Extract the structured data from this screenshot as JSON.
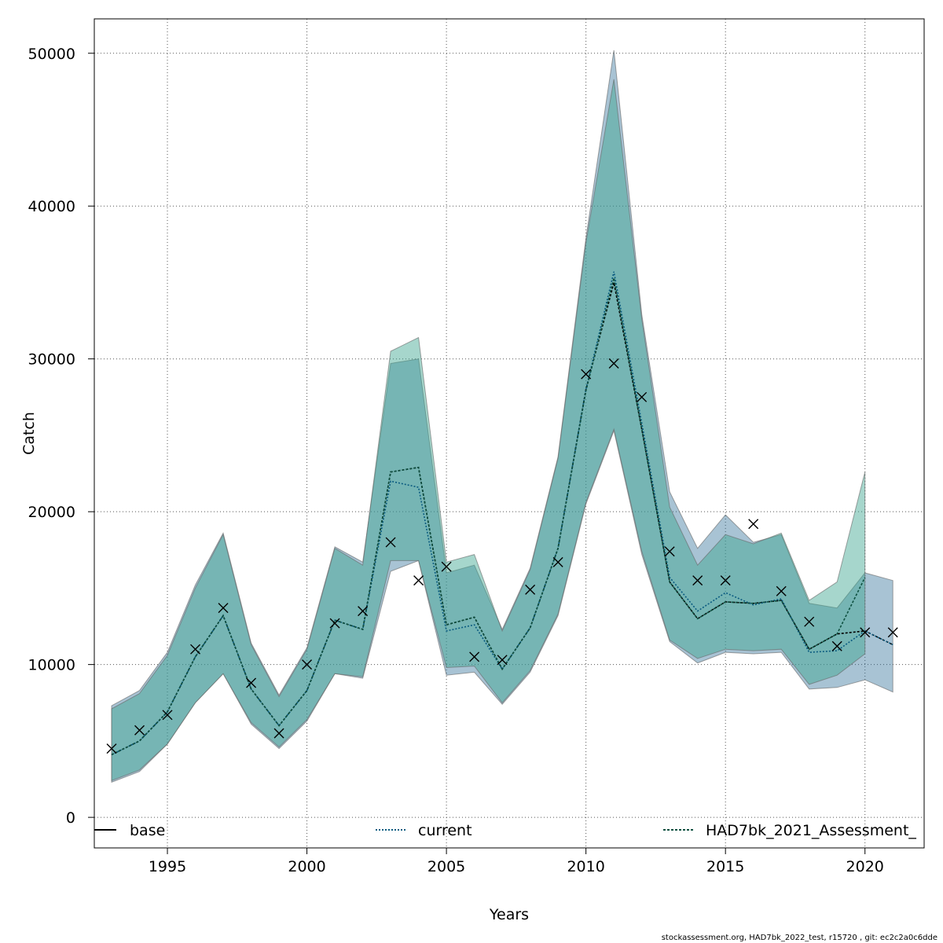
{
  "chart_data": {
    "type": "line",
    "xlabel": "Years",
    "ylabel": "Catch",
    "xlim": [
      1992.35,
      1993.0
    ],
    "xlim_full": [
      1992.38,
      2022.12
    ],
    "ylim": [
      -2000,
      52250
    ],
    "x_ticks": [
      1995,
      2000,
      2005,
      2010,
      2015,
      2020
    ],
    "y_ticks": [
      0,
      10000,
      20000,
      30000,
      40000,
      50000
    ],
    "x_tick_labels": [
      "1995",
      "2000",
      "2005",
      "2010",
      "2015",
      "2020"
    ],
    "y_tick_labels": [
      "0",
      "10000",
      "20000",
      "30000",
      "40000",
      "50000"
    ],
    "grid": true,
    "legend": {
      "placement": "bottom",
      "entries": [
        "base",
        "current",
        "HAD7bk_2021_Assessment_"
      ]
    },
    "colors": {
      "base_band": "#2f7198",
      "current_band": "#3aa48e",
      "overlap_hint": "#72b5b5",
      "line_base": "#000000",
      "line_current": "#0a5b80",
      "line_prev": "#0e5040"
    },
    "footer": "stockassessment.org, HAD7bk_2022_test, r15720 , git: ec2c2a0c6dde",
    "series": [
      {
        "name": "base",
        "x": [
          1993,
          1994,
          1995,
          1996,
          1997,
          1998,
          1999,
          2000,
          2001,
          2002,
          2003,
          2004,
          2005,
          2006,
          2007,
          2008,
          2009,
          2010,
          2011,
          2012,
          2013,
          2014,
          2015,
          2016,
          2017,
          2018,
          2019,
          2020,
          2021
        ],
        "y": [
          4100,
          5000,
          6900,
          10500,
          13200,
          8400,
          6000,
          8300,
          12900,
          12300,
          22600,
          22900,
          12600,
          13100,
          9700,
          12400,
          17600,
          28000,
          35000,
          25400,
          15400,
          13000,
          14100,
          14000,
          14200,
          11000,
          12000,
          12200,
          11300
        ],
        "lower": [
          2300,
          3000,
          4800,
          7500,
          9400,
          6100,
          4500,
          6300,
          9400,
          9100,
          16100,
          16800,
          9300,
          9500,
          7400,
          9500,
          13200,
          20500,
          25300,
          17200,
          11500,
          10100,
          10800,
          10700,
          10800,
          8400,
          8500,
          9000,
          8200
        ],
        "upper": [
          7300,
          8300,
          10800,
          15200,
          18600,
          11400,
          8000,
          11100,
          17700,
          16700,
          29700,
          30000,
          16000,
          16500,
          12300,
          16300,
          23600,
          37900,
          50200,
          32900,
          21300,
          17600,
          19800,
          18000,
          18500,
          14000,
          13700,
          16000,
          15500
        ]
      },
      {
        "name": "current",
        "x": [
          1993,
          1994,
          1995,
          1996,
          1997,
          1998,
          1999,
          2000,
          2001,
          2002,
          2003,
          2004,
          2005,
          2006,
          2007,
          2008,
          2009,
          2010,
          2011,
          2012,
          2013,
          2014,
          2015,
          2016,
          2017,
          2018,
          2019,
          2020,
          2021
        ],
        "y": [
          4100,
          5000,
          6900,
          10500,
          13200,
          8400,
          6000,
          8300,
          12900,
          12300,
          22000,
          21600,
          12200,
          12600,
          9700,
          12400,
          17600,
          28000,
          35700,
          25800,
          15700,
          13500,
          14700,
          13900,
          14300,
          10800,
          10900,
          12200,
          11300
        ],
        "lower": [
          2300,
          3000,
          4800,
          7500,
          9400,
          6100,
          4500,
          6300,
          9400,
          9100,
          16100,
          16800,
          9300,
          9500,
          7400,
          9500,
          13200,
          20500,
          25300,
          17200,
          11500,
          10100,
          10800,
          10700,
          10800,
          8400,
          8500,
          9000,
          8200
        ],
        "upper": [
          7300,
          8300,
          10800,
          15200,
          18600,
          11400,
          8000,
          11100,
          17700,
          16700,
          29700,
          30000,
          16000,
          16500,
          12300,
          16300,
          23600,
          37900,
          50200,
          32900,
          21300,
          17600,
          19800,
          18000,
          18500,
          14000,
          13700,
          16000,
          15500
        ]
      },
      {
        "name": "HAD7bk_2021_Assessment_",
        "x": [
          1993,
          1994,
          1995,
          1996,
          1997,
          1998,
          1999,
          2000,
          2001,
          2002,
          2003,
          2004,
          2005,
          2006,
          2007,
          2008,
          2009,
          2010,
          2011,
          2012,
          2013,
          2014,
          2015,
          2016,
          2017,
          2018,
          2019,
          2020
        ],
        "y": [
          4100,
          5000,
          6900,
          10500,
          13200,
          8400,
          6000,
          8300,
          12900,
          12300,
          22600,
          22900,
          12600,
          13100,
          9700,
          12400,
          17600,
          27900,
          35300,
          25400,
          15400,
          13000,
          14100,
          14000,
          14200,
          11000,
          12000,
          15700
        ],
        "lower": [
          2400,
          3100,
          4800,
          7500,
          9400,
          6200,
          4600,
          6400,
          9400,
          9200,
          16800,
          16800,
          9800,
          9900,
          7500,
          9600,
          13300,
          20600,
          25400,
          17400,
          11600,
          10400,
          11000,
          10900,
          11000,
          8700,
          9300,
          10700
        ],
        "upper": [
          7100,
          8100,
          10600,
          15000,
          18500,
          11300,
          7900,
          11000,
          17600,
          16500,
          30500,
          31400,
          16700,
          17200,
          12200,
          16200,
          23500,
          37600,
          48300,
          32600,
          20300,
          16500,
          18500,
          17900,
          18600,
          14200,
          15400,
          22600
        ]
      }
    ],
    "observed": {
      "x": [
        1993,
        1994,
        1995,
        1996,
        1997,
        1998,
        1999,
        2000,
        2001,
        2002,
        2003,
        2004,
        2005,
        2006,
        2007,
        2008,
        2009,
        2010,
        2011,
        2012,
        2013,
        2014,
        2015,
        2016,
        2017,
        2018,
        2019,
        2020,
        2021
      ],
      "y": [
        4500,
        5700,
        6700,
        11000,
        13700,
        8800,
        5500,
        10000,
        12700,
        13500,
        18000,
        15500,
        16400,
        10500,
        10300,
        14900,
        16700,
        29000,
        29700,
        27500,
        17400,
        15500,
        15500,
        19200,
        14800,
        12800,
        11200,
        12100,
        12100
      ]
    }
  }
}
